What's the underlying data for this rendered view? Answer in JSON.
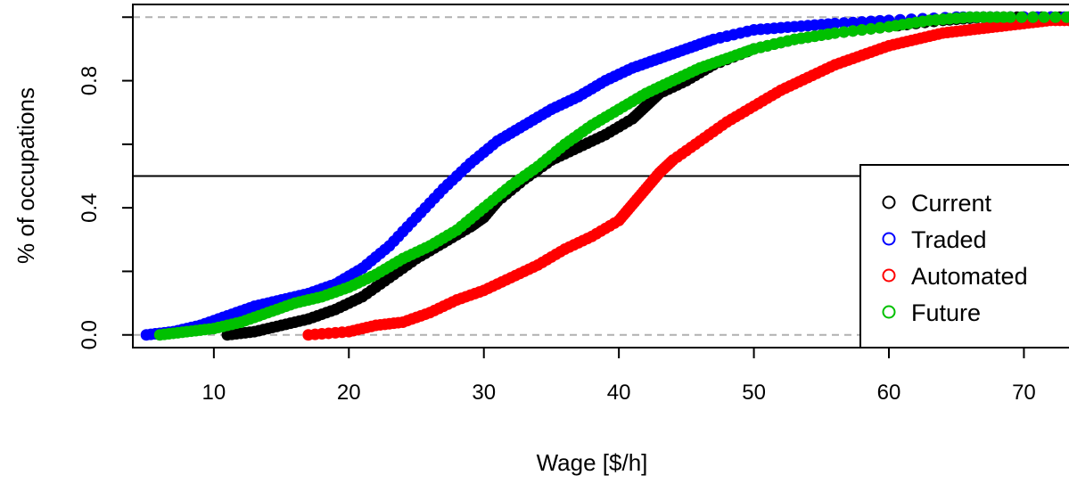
{
  "chart_data": {
    "type": "line",
    "title": "",
    "xlabel": "Wage [$/h]",
    "ylabel": "% of occupations",
    "xlim": [
      4,
      74
    ],
    "ylim": [
      -0.04,
      1.04
    ],
    "xticks": [
      10,
      20,
      30,
      40,
      50,
      60,
      70
    ],
    "yticks": [
      0.0,
      0.4,
      0.8
    ],
    "ytick_labels": [
      "0.0",
      "0.4",
      "0.8"
    ],
    "reference_lines": {
      "horizontal_dashed": [
        0,
        1
      ],
      "horizontal_solid": [
        0.5
      ]
    },
    "grid": false,
    "legend_position": "right",
    "series": [
      {
        "name": "Current",
        "color": "#000000",
        "x": [
          11.0,
          13.0,
          15.0,
          17.0,
          19.0,
          21.0,
          23.0,
          25.0,
          27.0,
          29.0,
          30.0,
          31.0,
          33.0,
          35.0,
          37.0,
          39.0,
          41.0,
          42.0,
          43.0,
          45.0,
          47.0,
          50.0,
          53.0,
          56.0,
          60.0,
          64.0,
          67.0,
          70.0,
          74.0
        ],
        "y": [
          0.0,
          0.01,
          0.03,
          0.05,
          0.08,
          0.12,
          0.18,
          0.24,
          0.29,
          0.34,
          0.37,
          0.42,
          0.49,
          0.55,
          0.59,
          0.63,
          0.68,
          0.72,
          0.76,
          0.8,
          0.85,
          0.9,
          0.93,
          0.95,
          0.97,
          0.99,
          1.0,
          1.0,
          1.0
        ]
      },
      {
        "name": "Traded",
        "color": "#0000ff",
        "x": [
          5.0,
          7.0,
          9.0,
          11.0,
          13.0,
          15.0,
          17.0,
          19.0,
          21.0,
          23.0,
          25.0,
          27.0,
          29.0,
          31.0,
          33.0,
          35.0,
          37.0,
          39.0,
          41.0,
          43.0,
          45.0,
          47.0,
          50.0,
          53.0,
          56.0,
          60.0,
          65.0,
          68.0,
          74.0
        ],
        "y": [
          0.0,
          0.01,
          0.03,
          0.06,
          0.09,
          0.11,
          0.13,
          0.16,
          0.21,
          0.28,
          0.37,
          0.46,
          0.54,
          0.61,
          0.66,
          0.71,
          0.75,
          0.8,
          0.84,
          0.87,
          0.9,
          0.93,
          0.96,
          0.97,
          0.98,
          0.99,
          1.0,
          1.0,
          1.0
        ]
      },
      {
        "name": "Automated",
        "color": "#ff0000",
        "x": [
          17.0,
          20.0,
          22.0,
          24.0,
          26.0,
          28.0,
          30.0,
          32.0,
          34.0,
          36.0,
          38.0,
          40.0,
          41.0,
          42.0,
          43.0,
          44.0,
          46.0,
          48.0,
          50.0,
          52.0,
          54.0,
          56.0,
          58.0,
          60.0,
          62.0,
          64.0,
          66.0,
          68.0,
          70.0,
          72.0,
          74.0
        ],
        "y": [
          0.0,
          0.01,
          0.03,
          0.04,
          0.07,
          0.11,
          0.14,
          0.18,
          0.22,
          0.27,
          0.31,
          0.36,
          0.41,
          0.46,
          0.51,
          0.55,
          0.61,
          0.67,
          0.72,
          0.77,
          0.81,
          0.85,
          0.88,
          0.91,
          0.93,
          0.95,
          0.96,
          0.97,
          0.98,
          0.99,
          0.99
        ]
      },
      {
        "name": "Future",
        "color": "#00c000",
        "x": [
          6.0,
          8.0,
          10.0,
          12.0,
          14.0,
          16.0,
          18.0,
          20.0,
          22.0,
          24.0,
          26.0,
          28.0,
          30.0,
          32.0,
          34.0,
          36.0,
          38.0,
          40.0,
          42.0,
          44.0,
          46.0,
          48.0,
          50.0,
          53.0,
          56.0,
          60.0,
          63.0,
          66.0,
          69.0,
          74.0
        ],
        "y": [
          0.0,
          0.01,
          0.02,
          0.04,
          0.07,
          0.1,
          0.12,
          0.15,
          0.19,
          0.24,
          0.28,
          0.33,
          0.4,
          0.47,
          0.53,
          0.6,
          0.66,
          0.71,
          0.76,
          0.8,
          0.84,
          0.87,
          0.9,
          0.93,
          0.95,
          0.97,
          0.99,
          1.0,
          1.0,
          1.0
        ]
      }
    ]
  }
}
